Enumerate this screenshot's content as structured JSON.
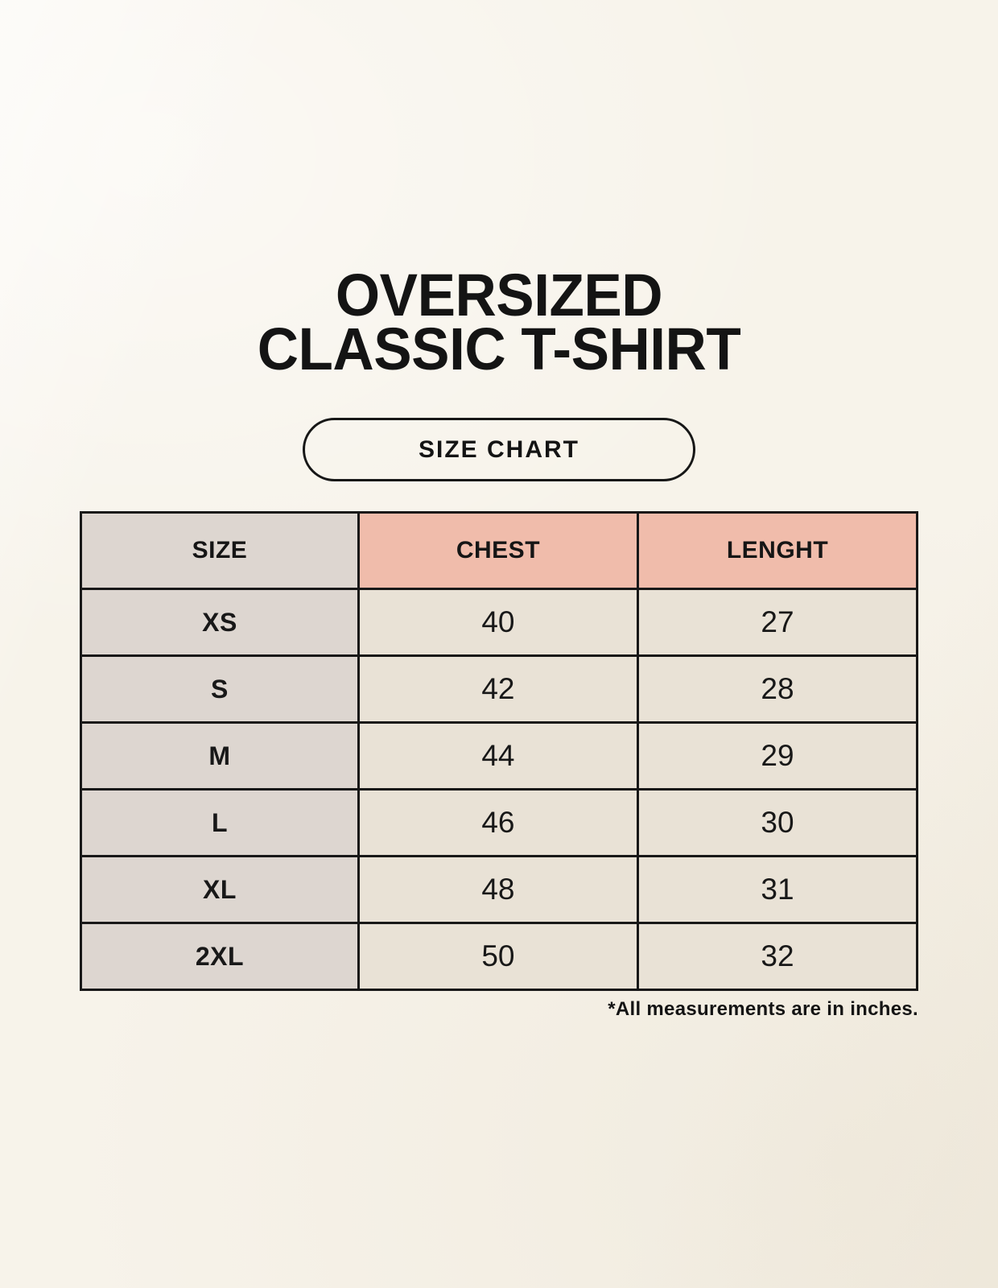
{
  "page": {
    "title_line1": "OVERSIZED",
    "title_line2": "CLASSIC T-SHIRT",
    "badge_label": "SIZE CHART",
    "footnote": "*All measurements are in inches."
  },
  "colors": {
    "background": "#f7f3ea",
    "header_pink": "#f0bcab",
    "column_gray": "#ddd6d0",
    "cell_cream": "#e9e2d6",
    "border": "#181818",
    "text": "#141414"
  },
  "chart_data": {
    "type": "table",
    "title": "OVERSIZED CLASSIC T-SHIRT",
    "subtitle": "SIZE CHART",
    "columns": [
      "SIZE",
      "CHEST",
      "LENGHT"
    ],
    "rows": [
      [
        "XS",
        "40",
        "27"
      ],
      [
        "S",
        "42",
        "28"
      ],
      [
        "M",
        "44",
        "29"
      ],
      [
        "L",
        "46",
        "30"
      ],
      [
        "XL",
        "48",
        "31"
      ],
      [
        "2XL",
        "50",
        "32"
      ]
    ],
    "units_note": "*All measurements are in inches.",
    "units": "inches"
  }
}
